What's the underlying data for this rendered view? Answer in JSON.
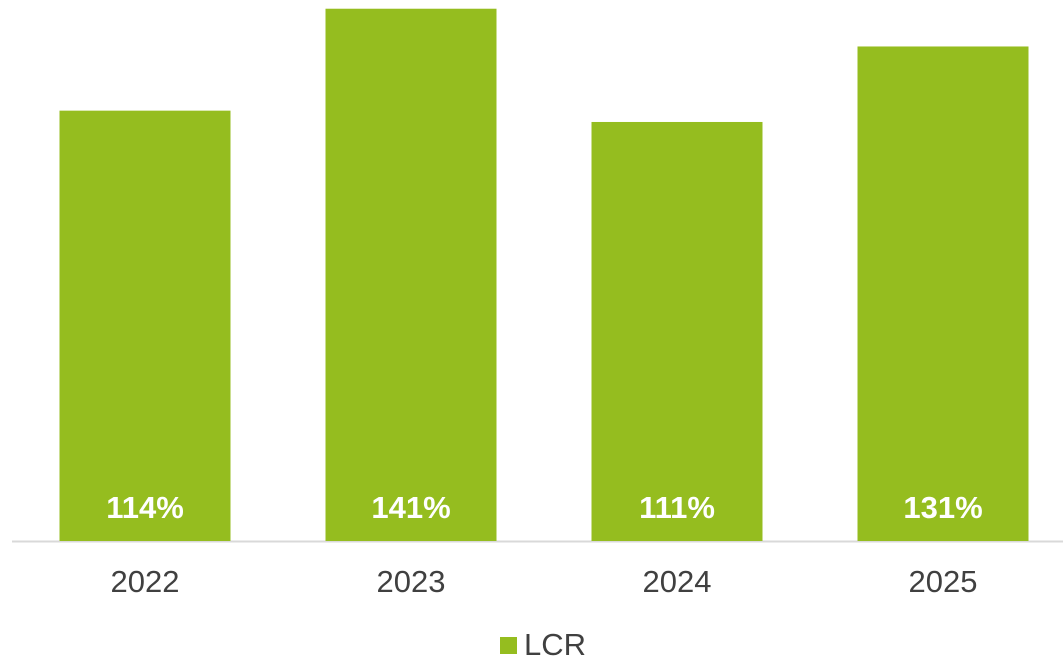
{
  "chart_data": {
    "type": "bar",
    "categories": [
      "2022",
      "2023",
      "2024",
      "2025"
    ],
    "series": [
      {
        "name": "LCR",
        "color": "#95bd1f",
        "values": [
          114,
          141,
          111,
          131
        ],
        "value_labels": [
          "114%",
          "141%",
          "111%",
          "131%"
        ]
      }
    ],
    "ylim": [
      0,
      150
    ],
    "legend": "bottom"
  }
}
